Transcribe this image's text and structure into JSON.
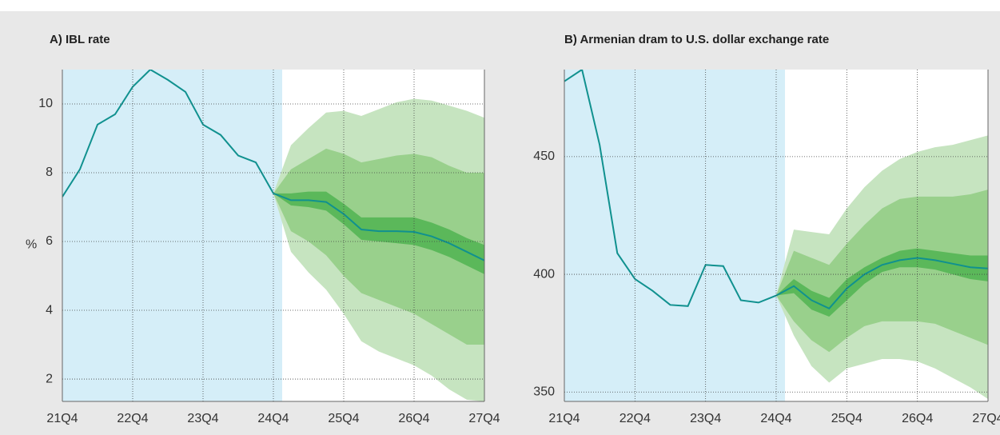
{
  "chart_data": [
    {
      "type": "fan",
      "title": "A) IBL rate",
      "y_label": "%",
      "categories": [
        "21Q4",
        null,
        null,
        null,
        "22Q4",
        null,
        null,
        null,
        "23Q4",
        null,
        null,
        null,
        "24Q4",
        null,
        null,
        null,
        "25Q4",
        null,
        null,
        null,
        "26Q4",
        null,
        null,
        null,
        "27Q4"
      ],
      "ylim": [
        1.35,
        11
      ],
      "yticks": [
        2,
        4,
        6,
        8,
        10
      ],
      "grid": true,
      "shade_color": "#d5eef8",
      "series": [
        {
          "color": "#10918f",
          "values": [
            7.3,
            8.1,
            9.4,
            9.7,
            10.5,
            11.0,
            10.7,
            10.35,
            9.4,
            9.1,
            8.5,
            8.3,
            7.4,
            7.2,
            7.2,
            7.15,
            6.8,
            6.35,
            6.3,
            6.3,
            6.28,
            6.15,
            5.95,
            5.7,
            5.45
          ]
        }
      ],
      "bands": [
        {
          "color": "#c6e4c0",
          "upper": [
            null,
            null,
            null,
            null,
            null,
            null,
            null,
            null,
            null,
            null,
            null,
            null,
            7.4,
            8.8,
            9.3,
            9.75,
            9.8,
            9.65,
            9.85,
            10.05,
            10.15,
            10.1,
            9.95,
            9.8,
            9.6
          ],
          "lower": [
            null,
            null,
            null,
            null,
            null,
            null,
            null,
            null,
            null,
            null,
            null,
            null,
            7.4,
            5.7,
            5.1,
            4.6,
            3.9,
            3.1,
            2.8,
            2.6,
            2.4,
            2.1,
            1.7,
            1.4,
            1.35
          ]
        },
        {
          "color": "#99d08c",
          "upper": [
            null,
            null,
            null,
            null,
            null,
            null,
            null,
            null,
            null,
            null,
            null,
            null,
            7.4,
            8.1,
            8.4,
            8.7,
            8.55,
            8.3,
            8.4,
            8.5,
            8.55,
            8.45,
            8.2,
            8.0,
            8.0
          ],
          "lower": [
            null,
            null,
            null,
            null,
            null,
            null,
            null,
            null,
            null,
            null,
            null,
            null,
            7.4,
            6.3,
            6.0,
            5.6,
            5.0,
            4.5,
            4.3,
            4.1,
            3.9,
            3.6,
            3.3,
            3.0,
            3.0
          ]
        },
        {
          "color": "#5bb85a",
          "upper": [
            null,
            null,
            null,
            null,
            null,
            null,
            null,
            null,
            null,
            null,
            null,
            null,
            7.4,
            7.4,
            7.45,
            7.45,
            7.1,
            6.7,
            6.7,
            6.7,
            6.7,
            6.55,
            6.35,
            6.1,
            5.9
          ],
          "lower": [
            null,
            null,
            null,
            null,
            null,
            null,
            null,
            null,
            null,
            null,
            null,
            null,
            7.4,
            7.05,
            7.0,
            6.9,
            6.5,
            6.05,
            6.0,
            5.95,
            5.9,
            5.75,
            5.55,
            5.3,
            5.05
          ]
        }
      ]
    },
    {
      "type": "fan",
      "title": "B) Armenian dram to U.S. dollar exchange rate",
      "categories": [
        "21Q4",
        null,
        null,
        null,
        "22Q4",
        null,
        null,
        null,
        "23Q4",
        null,
        null,
        null,
        "24Q4",
        null,
        null,
        null,
        "25Q4",
        null,
        null,
        null,
        "26Q4",
        null,
        null,
        null,
        "27Q4"
      ],
      "ylim": [
        346,
        487
      ],
      "yticks": [
        350,
        400,
        450
      ],
      "grid": true,
      "shade_color": "#d5eef8",
      "series": [
        {
          "color": "#10918f",
          "values": [
            482,
            487,
            455,
            409,
            398,
            393,
            387,
            386.5,
            404,
            403.5,
            389,
            388,
            391,
            395,
            389,
            385.5,
            394,
            400,
            404,
            406,
            407,
            406,
            404.5,
            403,
            402.5
          ]
        }
      ],
      "bands": [
        {
          "color": "#c6e4c0",
          "upper": [
            null,
            null,
            null,
            null,
            null,
            null,
            null,
            null,
            null,
            null,
            null,
            null,
            391,
            419,
            418,
            417,
            428,
            437,
            444,
            449,
            452,
            454,
            455,
            457,
            459
          ],
          "lower": [
            null,
            null,
            null,
            null,
            null,
            null,
            null,
            null,
            null,
            null,
            null,
            null,
            391,
            374,
            361,
            354,
            360,
            362,
            364,
            364,
            363,
            360,
            356,
            352,
            347
          ]
        },
        {
          "color": "#99d08c",
          "upper": [
            null,
            null,
            null,
            null,
            null,
            null,
            null,
            null,
            null,
            null,
            null,
            null,
            391,
            410,
            407,
            404,
            413,
            421,
            428,
            432,
            433,
            433,
            433,
            434,
            436
          ],
          "lower": [
            null,
            null,
            null,
            null,
            null,
            null,
            null,
            null,
            null,
            null,
            null,
            null,
            391,
            380,
            372,
            367,
            373,
            378,
            380,
            380,
            380,
            379,
            376,
            373,
            370
          ]
        },
        {
          "color": "#5bb85a",
          "upper": [
            null,
            null,
            null,
            null,
            null,
            null,
            null,
            null,
            null,
            null,
            null,
            null,
            391,
            398,
            393,
            390,
            398,
            403,
            407,
            410,
            411,
            410,
            409,
            408,
            408
          ],
          "lower": [
            null,
            null,
            null,
            null,
            null,
            null,
            null,
            null,
            null,
            null,
            null,
            null,
            391,
            392,
            385,
            382,
            389,
            396,
            401,
            403,
            403,
            402,
            400,
            398,
            397
          ]
        }
      ]
    }
  ]
}
